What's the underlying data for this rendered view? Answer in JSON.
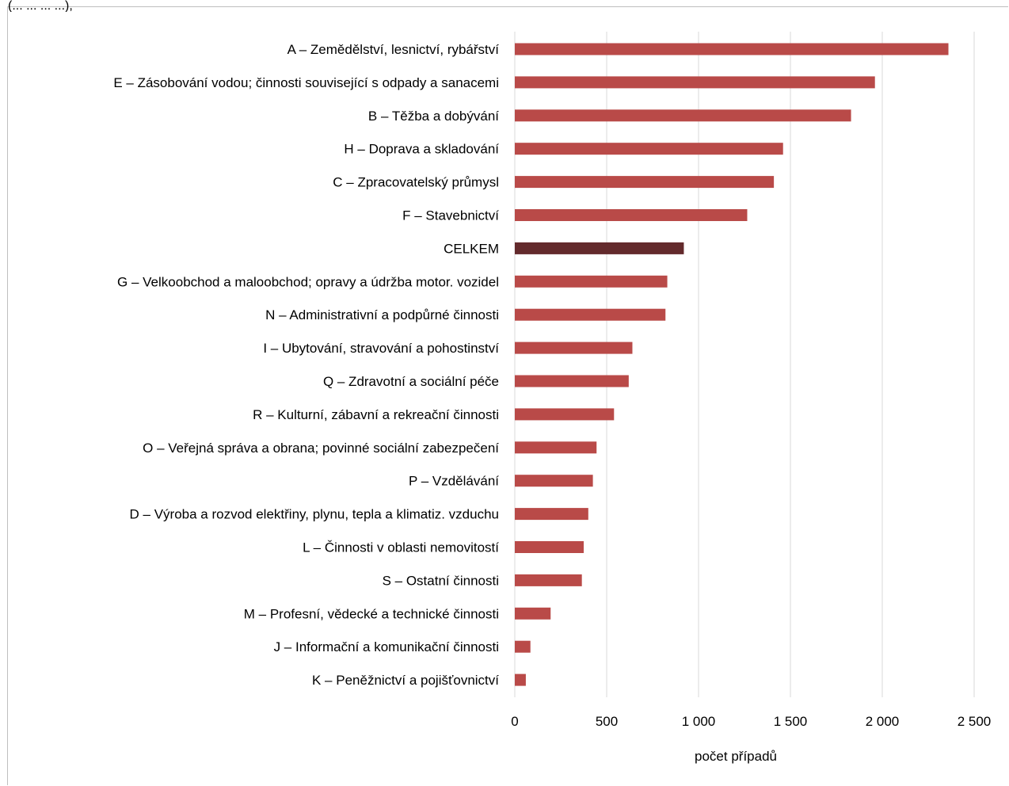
{
  "header": {
    "fragment": "(... ... ... ...),"
  },
  "chart_data": {
    "type": "bar",
    "orientation": "horizontal",
    "categories": [
      "A – Zemědělství, lesnictví, rybářství",
      "E – Zásobování vodou; činnosti související s odpady a sanacemi",
      "B – Těžba a dobývání",
      "H – Doprava a skladování",
      "C – Zpracovatelský průmysl",
      "F – Stavebnictví",
      "CELKEM",
      "G – Velkoobchod a maloobchod; opravy a údržba motor. vozidel",
      "N – Administrativní a podpůrné činnosti",
      "I – Ubytování, stravování a pohostinství",
      "Q – Zdravotní a sociální péče",
      "R – Kulturní, zábavní a rekreační činnosti",
      "O – Veřejná správa a obrana; povinné sociální zabezpečení",
      "P – Vzdělávání",
      "D – Výroba a rozvod elektřiny, plynu, tepla a klimatiz. vzduchu",
      "L – Činnosti v oblasti nemovitostí",
      "S – Ostatní činnosti",
      "M – Profesní, vědecké a technické činnosti",
      "J – Informační a komunikační činnosti",
      "K – Peněžnictví a pojišťovnictví"
    ],
    "values": [
      2360,
      1960,
      1830,
      1460,
      1410,
      1265,
      920,
      830,
      820,
      640,
      620,
      540,
      445,
      425,
      400,
      375,
      365,
      195,
      85,
      60
    ],
    "highlight_category": "CELKEM",
    "colors": {
      "bar": "#b94a48",
      "highlight": "#632a2c",
      "grid": "#d9d9d9"
    },
    "xlim": [
      0,
      2500
    ],
    "xticks": [
      0,
      500,
      1000,
      1500,
      2000,
      2500
    ],
    "xtick_labels": [
      "0",
      "500",
      "1 000",
      "1 500",
      "2 000",
      "2 500"
    ],
    "xlabel": "počet případů",
    "ylabel": "",
    "title": "",
    "grid": true,
    "legend": "none"
  }
}
